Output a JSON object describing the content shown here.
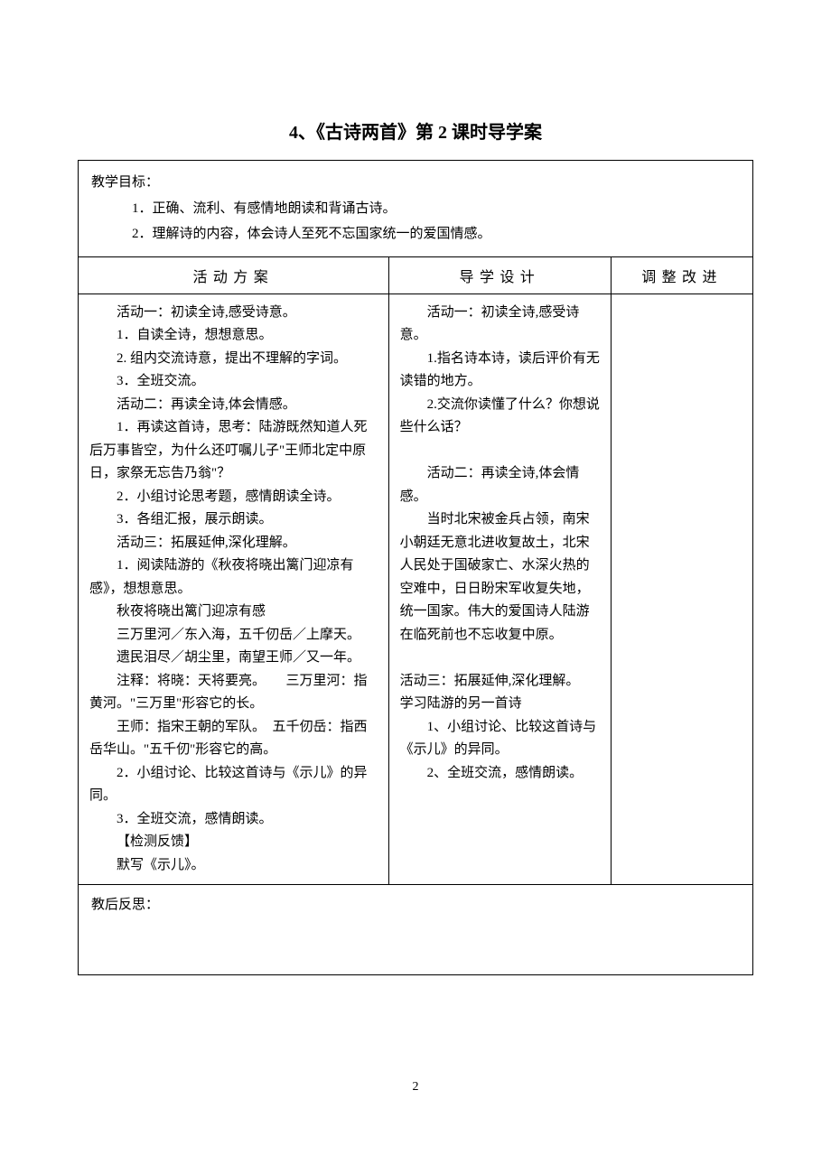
{
  "title": "4、《古诗两首》第 2 课时导学案",
  "goals": {
    "label": "教学目标：",
    "items": [
      "1．正确、流利、有感情地朗读和背诵古诗。",
      "2．理解诗的内容，体会诗人至死不忘国家统一的爱国情感。"
    ]
  },
  "headers": {
    "col1": "活动方案",
    "col2": "导学设计",
    "col3": "调整改进"
  },
  "activity_plan": {
    "a1_title": "活动一：初读全诗,感受诗意。",
    "a1_1": "1．自读全诗，想想意思。",
    "a1_2": "2. 组内交流诗意，提出不理解的字词。",
    "a1_3": "3．全班交流。",
    "a2_title": "活动二：再读全诗,体会情感。",
    "a2_1": "1．再读这首诗，思考：陆游既然知道人死后万事皆空，为什么还叮嘱儿子\"王师北定中原日，家祭无忘告乃翁\"？",
    "a2_2": "2．小组讨论思考题，感情朗读全诗。",
    "a2_3": "3．各组汇报，展示朗读。",
    "a3_title": "活动三：拓展延伸,深化理解。",
    "a3_1": "1．阅读陆游的《秋夜将晓出篱门迎凉有感》，想想意思。",
    "poem_title": "秋夜将晓出篱门迎凉有感",
    "poem_l1": "三万里河／东入海，五千仞岳／上摩天。",
    "poem_l2": "遗民泪尽／胡尘里，南望王师／又一年。",
    "note1": "注释：将晓：天将要亮。　　三万里河：指黄河。\"三万里\"形容它的长。",
    "note2": "王师：指宋王朝的军队。　五千仞岳：指西岳华山。\"五千仞\"形容它的高。",
    "a3_2": "2．小组讨论、比较这首诗与《示儿》的异同。",
    "a3_3": "3．全班交流，感情朗读。",
    "check": "【检测反馈】",
    "check_1": "默写《示儿》。"
  },
  "guide_design": {
    "a1_title": "活动一：初读全诗,感受诗意。",
    "a1_1": "1.指名诗本诗，读后评价有无读错的地方。",
    "a1_2": "2.交流你读懂了什么？你想说些什么话？",
    "a2_title": "活动二：再读全诗,体会情感。",
    "a2_body": "当时北宋被金兵占领，南宋小朝廷无意北进收复故土，北宋人民处于国破家亡、水深火热的空难中，日日盼宋军收复失地，统一国家。伟大的爱国诗人陆游在临死前也不忘收复中原。",
    "a3_title": "活动三：拓展延伸,深化理解。",
    "a3_sub": "学习陆游的另一首诗",
    "a3_1": "1、小组讨论、比较这首诗与《示儿》的异同。",
    "a3_2": "2、全班交流，感情朗读。"
  },
  "reflection_label": "教后反思：",
  "page_number": "2"
}
